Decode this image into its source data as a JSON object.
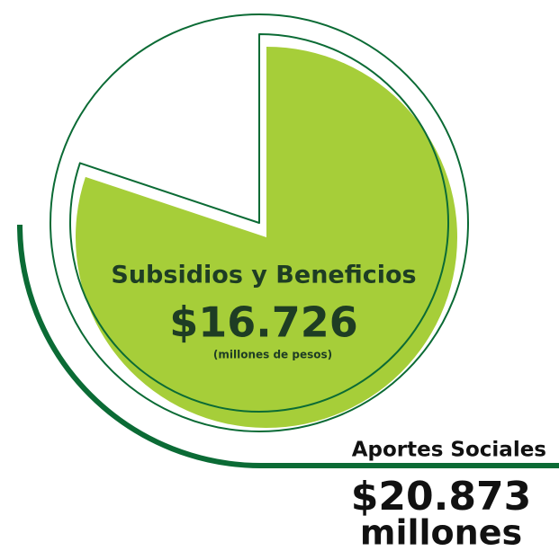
{
  "chart_data": {
    "type": "pie",
    "categories": [
      "Subsidios y Beneficios"
    ],
    "values": [
      16726
    ],
    "value_labels": [
      "$16.726"
    ],
    "unit": "(millones de pesos)",
    "total": {
      "label": "Aportes Sociales",
      "value": 20873,
      "value_label": "$20.873",
      "unit": "millones"
    },
    "color": "#a6ce39",
    "outline_color": "#0b6b35"
  }
}
